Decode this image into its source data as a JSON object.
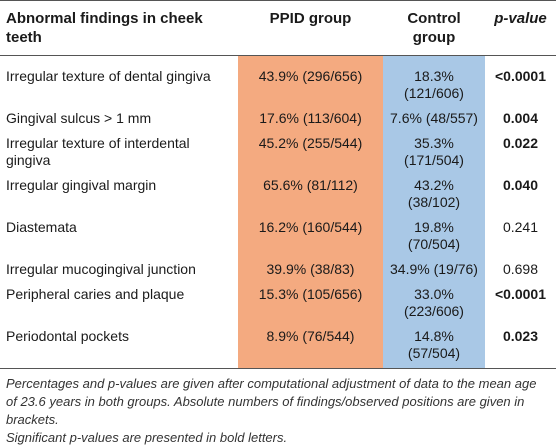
{
  "header": {
    "col1": "Abnormal findings in cheek teeth",
    "col2": "PPID group",
    "col3": "Control group",
    "col4": "p-value"
  },
  "rows": [
    {
      "finding": "Irregular texture of dental gingiva",
      "ppid": "43.9% (296/656)",
      "control": "18.3% (121/606)",
      "p": "<0.0001",
      "significant": true
    },
    {
      "finding": "Gingival sulcus > 1 mm",
      "ppid": "17.6% (113/604)",
      "control": "7.6% (48/557)",
      "p": "0.004",
      "significant": true
    },
    {
      "finding": "Irregular texture of interdental gingiva",
      "ppid": "45.2% (255/544)",
      "control": "35.3% (171/504)",
      "p": "0.022",
      "significant": true
    },
    {
      "finding": "Irregular gingival margin",
      "ppid": "65.6% (81/112)",
      "control": "43.2% (38/102)",
      "p": "0.040",
      "significant": true
    },
    {
      "finding": "Diastemata",
      "ppid": "16.2% (160/544)",
      "control": "19.8% (70/504)",
      "p": "0.241",
      "significant": false
    },
    {
      "finding": "Irregular mucogingival junction",
      "ppid": "39.9% (38/83)",
      "control": "34.9% (19/76)",
      "p": "0.698",
      "significant": false
    },
    {
      "finding": "Peripheral caries and plaque",
      "ppid": "15.3% (105/656)",
      "control": "33.0% (223/606)",
      "p": "<0.0001",
      "significant": true
    },
    {
      "finding": "Periodontal pockets",
      "ppid": "8.9% (76/544)",
      "control": "14.8% (57/504)",
      "p": "0.023",
      "significant": true
    }
  ],
  "footnote": {
    "line1": "Percentages and p-values are given after computational adjustment of data to the mean age of 23.6 years in both groups. Absolute numbers of findings/observed positions are given in brackets.",
    "line2": "Significant p-values are presented in bold letters."
  },
  "colors": {
    "ppid_fill": "#f4aa80",
    "control_fill": "#a9c8e6"
  }
}
